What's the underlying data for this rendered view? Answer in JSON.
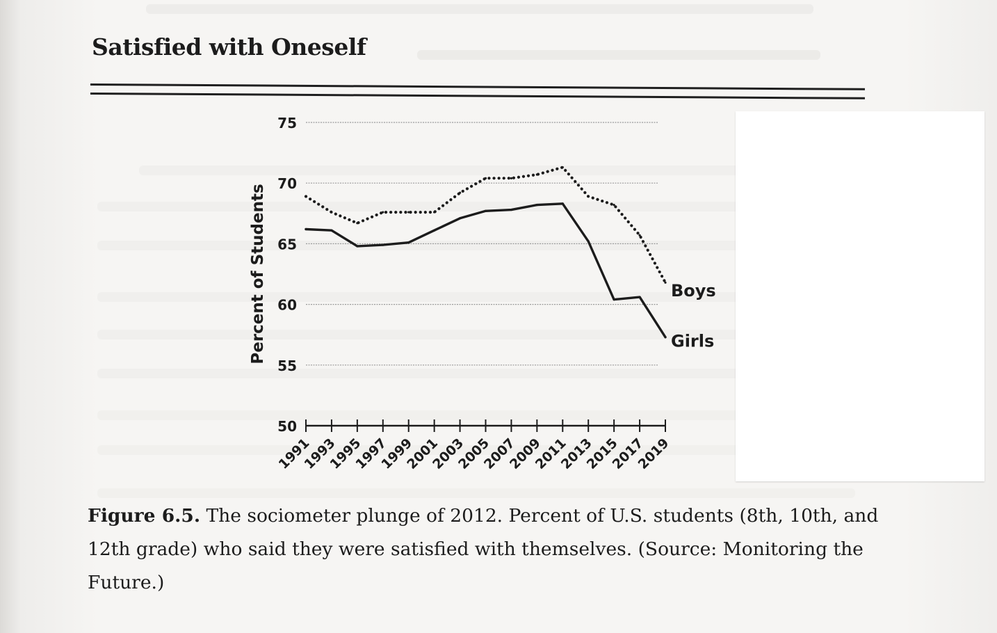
{
  "page": {
    "heading": "Satisfied with Oneself",
    "caption_label": "Figure 6.5.",
    "caption_text": "The sociometer plunge of 2012. Percent of U.S. students (8th, 10th, and 12th grade) who said they were satisfied with themselves. (Source: Monitoring the Future.)"
  },
  "chart_data": {
    "type": "line",
    "title": "",
    "xlabel": "",
    "ylabel": "Percent of Students",
    "ylim": [
      50,
      75
    ],
    "yticks": [
      50,
      55,
      60,
      65,
      70,
      75
    ],
    "xlim": [
      1991,
      2019
    ],
    "xticks": [
      1991,
      1993,
      1995,
      1997,
      1999,
      2001,
      2003,
      2005,
      2007,
      2009,
      2011,
      2013,
      2015,
      2017,
      2019
    ],
    "grid": true,
    "series": [
      {
        "name": "Boys",
        "style": "dotted",
        "color": "#1c1c1c",
        "x": [
          1991,
          1993,
          1995,
          1997,
          1999,
          2001,
          2003,
          2005,
          2007,
          2009,
          2011,
          2013,
          2015,
          2017,
          2019
        ],
        "y": [
          68.9,
          67.6,
          66.7,
          67.6,
          67.6,
          67.6,
          69.2,
          70.4,
          70.4,
          70.7,
          71.3,
          68.9,
          68.2,
          65.7,
          61.8
        ]
      },
      {
        "name": "Girls",
        "style": "solid",
        "color": "#1c1c1c",
        "x": [
          1991,
          1993,
          1995,
          1997,
          1999,
          2001,
          2003,
          2005,
          2007,
          2009,
          2011,
          2013,
          2015,
          2017,
          2019
        ],
        "y": [
          66.2,
          66.1,
          64.8,
          64.9,
          65.1,
          66.1,
          67.1,
          67.7,
          67.8,
          68.2,
          68.3,
          65.2,
          60.4,
          60.6,
          57.3
        ]
      }
    ]
  }
}
